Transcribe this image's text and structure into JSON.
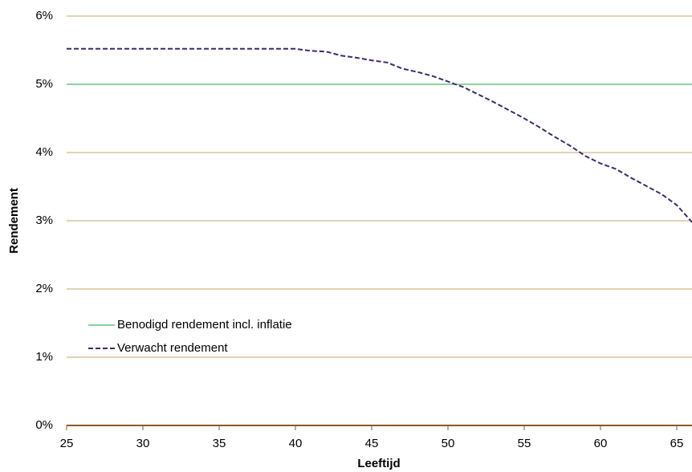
{
  "chart_data": {
    "type": "line",
    "x_label": "Leeftijd",
    "y_label": "Rendement",
    "x": [
      25,
      26,
      27,
      28,
      29,
      30,
      31,
      32,
      33,
      34,
      35,
      36,
      37,
      38,
      39,
      40,
      41,
      42,
      43,
      44,
      45,
      46,
      47,
      48,
      49,
      50,
      51,
      52,
      53,
      54,
      55,
      56,
      57,
      58,
      59,
      60,
      61,
      62,
      63,
      64,
      65,
      66
    ],
    "series": [
      {
        "name": "Benodigd rendement incl. inflatie",
        "color": "#8fd19e",
        "dash": false,
        "values": [
          5,
          5,
          5,
          5,
          5,
          5,
          5,
          5,
          5,
          5,
          5,
          5,
          5,
          5,
          5,
          5,
          5,
          5,
          5,
          5,
          5,
          5,
          5,
          5,
          5,
          5,
          5,
          5,
          5,
          5,
          5,
          5,
          5,
          5,
          5,
          5,
          5,
          5,
          5,
          5,
          5,
          5
        ]
      },
      {
        "name": "Verwacht rendement",
        "color": "#3f2a6b",
        "dash": true,
        "values": [
          5.52,
          5.52,
          5.52,
          5.52,
          5.52,
          5.52,
          5.52,
          5.52,
          5.52,
          5.52,
          5.52,
          5.52,
          5.52,
          5.52,
          5.52,
          5.52,
          5.49,
          5.48,
          5.42,
          5.39,
          5.35,
          5.32,
          5.23,
          5.18,
          5.12,
          5.04,
          4.96,
          4.85,
          4.74,
          4.62,
          4.5,
          4.37,
          4.23,
          4.1,
          3.95,
          3.84,
          3.76,
          3.63,
          3.51,
          3.39,
          3.23,
          2.98
        ]
      }
    ],
    "xlim": [
      25,
      66
    ],
    "xticks": [
      25,
      30,
      35,
      40,
      45,
      50,
      55,
      60,
      65
    ],
    "ylim": [
      0,
      6
    ],
    "yticks": [
      {
        "value": 0,
        "label": "0%"
      },
      {
        "value": 1,
        "label": "1%"
      },
      {
        "value": 2,
        "label": "2%"
      },
      {
        "value": 3,
        "label": "3%"
      },
      {
        "value": 4,
        "label": "4%"
      },
      {
        "value": 5,
        "label": "5%"
      },
      {
        "value": 6,
        "label": "6%"
      }
    ],
    "grid": true,
    "legend": "lower-left"
  }
}
